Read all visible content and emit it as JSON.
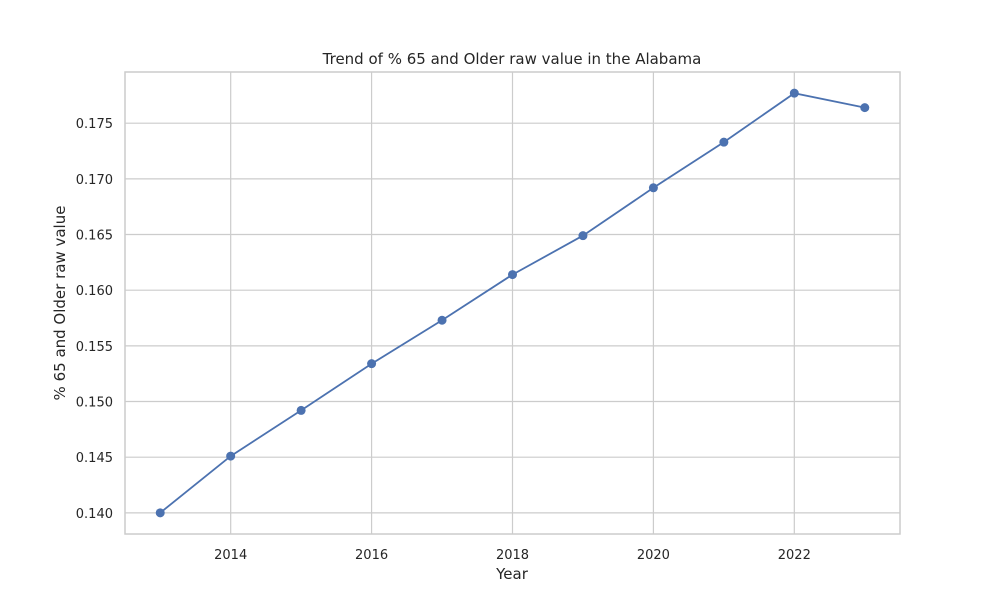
{
  "chart_data": {
    "type": "line",
    "title": "Trend of % 65 and Older raw value in the Alabama",
    "xlabel": "Year",
    "ylabel": "% 65 and Older raw value",
    "x": [
      2013,
      2014,
      2015,
      2016,
      2017,
      2018,
      2019,
      2020,
      2021,
      2022,
      2023
    ],
    "series": [
      {
        "values": [
          0.14,
          0.1451,
          0.1492,
          0.1534,
          0.1573,
          0.1614,
          0.1649,
          0.1692,
          0.1733,
          0.1777,
          0.1764
        ],
        "color": "#4c72b0",
        "marker": "circle"
      }
    ],
    "xlim": [
      2012.5,
      2023.5
    ],
    "ylim": [
      0.1381,
      0.1796
    ],
    "xticks": [
      "2014",
      "2016",
      "2018",
      "2020",
      "2022"
    ],
    "yticks": [
      "0.140",
      "0.145",
      "0.150",
      "0.155",
      "0.160",
      "0.165",
      "0.170",
      "0.175"
    ],
    "grid": true,
    "legend": "none"
  }
}
